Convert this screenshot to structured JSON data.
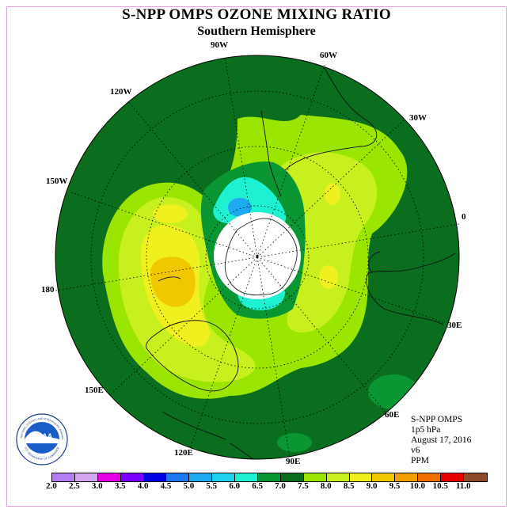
{
  "title": "S-NPP OMPS OZONE MIXING RATIO",
  "subtitle": "Southern Hemisphere",
  "longitude_labels": [
    "90W",
    "60W",
    "30W",
    "0",
    "30E",
    "60E",
    "90E",
    "120E",
    "150E",
    "180",
    "150W",
    "120W"
  ],
  "info": {
    "instrument": "S-NPP OMPS",
    "level": "1p5 hPa",
    "date": "August 17, 2016",
    "version": "v6",
    "units": "PPM"
  },
  "logo": {
    "text": "NOAA",
    "ring_text": "NATIONAL OCEANIC AND ATMOSPHERIC ADMINISTRATION",
    "ring_text_bottom": "U.S. DEPARTMENT OF COMMERCE"
  },
  "colorbar": {
    "ticks": [
      "2.0",
      "2.5",
      "3.0",
      "3.5",
      "4.0",
      "4.5",
      "5.0",
      "5.5",
      "6.0",
      "6.5",
      "7.0",
      "7.5",
      "8.0",
      "8.5",
      "9.0",
      "9.5",
      "10.0",
      "10.5",
      "11.0"
    ],
    "colors": [
      "#b57ef0",
      "#d4a6f0",
      "#e600e6",
      "#7a00ff",
      "#0000e6",
      "#1e78f0",
      "#1eaaf0",
      "#1ed2f0",
      "#1ef0d2",
      "#0a9632",
      "#0a6e1e",
      "#9be600",
      "#c8f01e",
      "#f0f01e",
      "#f0c800",
      "#f0a000",
      "#f06e00",
      "#e60000",
      "#8c4a28"
    ]
  }
}
